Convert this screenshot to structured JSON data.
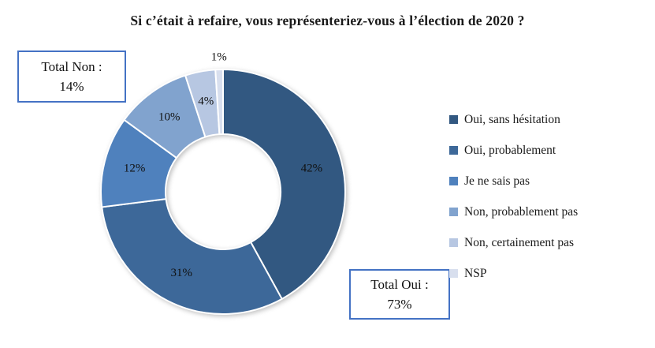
{
  "title": "Si c’était à refaire, vous représenteriez-vous à l’élection de 2020 ?",
  "chart_data": {
    "type": "pie",
    "subtype": "donut",
    "title": "Si c’était à refaire, vous représenteriez-vous à l’élection de 2020 ?",
    "categories": [
      "Oui, sans hésitation",
      "Oui, probablement",
      "Je ne sais pas",
      "Non, probablement pas",
      "Non, certainement pas",
      "NSP"
    ],
    "values": [
      42,
      31,
      12,
      10,
      4,
      1
    ],
    "data_labels": [
      "42%",
      "31%",
      "12%",
      "10%",
      "4%",
      "1%"
    ],
    "label_outside": [
      false,
      false,
      false,
      false,
      false,
      true
    ],
    "colors": [
      "#325881",
      "#3D6899",
      "#4F81BD",
      "#81A3CE",
      "#B7C7E2",
      "#D8DFEE"
    ],
    "legend_position": "right",
    "start_angle_deg": 0,
    "direction": "clockwise"
  },
  "annotations": {
    "total_non": {
      "line1": "Total Non :",
      "line2": "14%"
    },
    "total_oui": {
      "line1": "Total Oui :",
      "line2": "73%"
    }
  }
}
